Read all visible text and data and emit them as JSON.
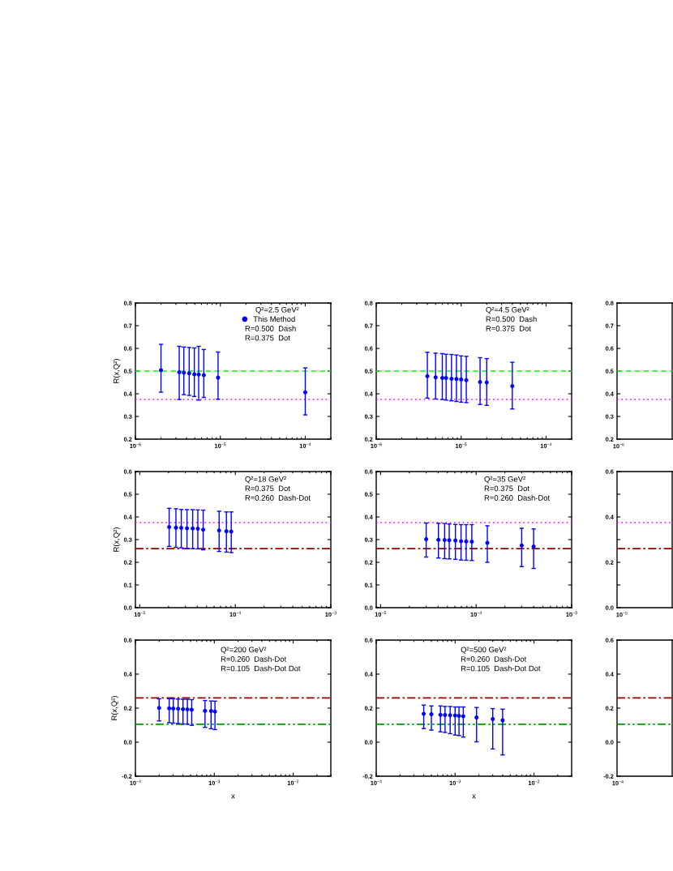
{
  "chart_data": [
    {
      "type": "scatter",
      "title": "Q²=2.5 GeV²",
      "ylabel": "R(x,Q²)",
      "log": "x",
      "marker": "circle",
      "legend": "top right",
      "xlim": [
        1e-06,
        0.0002
      ],
      "xticks": [
        {
          "value": 1e-06,
          "label": "10$^{−6}$"
        },
        {
          "value": 1e-05,
          "label": "10$^{−5}$"
        },
        {
          "value": 0.0001,
          "label": "10$^{−4}$"
        }
      ],
      "ylim": [
        0.2,
        0.8
      ],
      "yticks": [
        0.2,
        0.3,
        0.4,
        0.5,
        0.6,
        0.7,
        0.8
      ],
      "series": [
        {
          "name": "This Method",
          "color": "#0000ff",
          "x": [
            2e-06,
            3.28e-06,
            3.72e-06,
            4.3e-06,
            4.94e-06,
            5.56e-06,
            6.39e-06,
            9.4e-06,
            0.0001
          ],
          "values": [
            0.504,
            0.495,
            0.493,
            0.49,
            0.486,
            0.485,
            0.482,
            0.471,
            0.406
          ],
          "errors": [
            [
              0.407,
              0.618
            ],
            [
              0.375,
              0.609
            ],
            [
              0.396,
              0.606
            ],
            [
              0.393,
              0.604
            ],
            [
              0.388,
              0.602
            ],
            [
              0.372,
              0.609
            ],
            [
              0.384,
              0.595
            ],
            [
              0.376,
              0.584
            ],
            [
              0.307,
              0.514
            ]
          ]
        }
      ],
      "ref_lines": [
        {
          "axis": "y",
          "value": 0.5,
          "color": "#00ff00",
          "line_style": "dashed"
        },
        {
          "axis": "y",
          "value": 0.375,
          "color": "#ff00ff",
          "line_style": "dotted"
        }
      ],
      "annotations": [
        "R=0.500  Dash",
        "R=0.375  Dot"
      ]
    },
    {
      "type": "scatter",
      "title": "Q²=4.5 GeV²",
      "log": "x",
      "marker": "circle",
      "xlim": [
        1e-06,
        0.0002
      ],
      "xticks": [
        {
          "value": 1e-06,
          "label": "10$^{−6}$"
        },
        {
          "value": 1e-05,
          "label": "10$^{−5}$"
        },
        {
          "value": 0.0001,
          "label": "10$^{−4}$"
        }
      ],
      "ylim": [
        0.2,
        0.8
      ],
      "yticks": [
        0.2,
        0.3,
        0.4,
        0.5,
        0.6,
        0.7,
        0.8
      ],
      "series": [
        {
          "color": "#0000ff",
          "x": [
            4e-06,
            5e-06,
            6e-06,
            6.65e-06,
            7.7e-06,
            8.8e-06,
            1e-05,
            1.15e-05,
            1.67e-05,
            2e-05,
            4e-05
          ],
          "values": [
            0.478,
            0.472,
            0.47,
            0.47,
            0.466,
            0.465,
            0.463,
            0.46,
            0.452,
            0.45,
            0.434
          ],
          "errors": [
            [
              0.381,
              0.583
            ],
            [
              0.377,
              0.579
            ],
            [
              0.375,
              0.577
            ],
            [
              0.372,
              0.574
            ],
            [
              0.369,
              0.573
            ],
            [
              0.366,
              0.571
            ],
            [
              0.363,
              0.567
            ],
            [
              0.361,
              0.565
            ],
            [
              0.353,
              0.559
            ],
            [
              0.349,
              0.555
            ],
            [
              0.333,
              0.539
            ]
          ]
        }
      ],
      "ref_lines": [
        {
          "axis": "y",
          "value": 0.5,
          "color": "#00ff00",
          "line_style": "dashed"
        },
        {
          "axis": "y",
          "value": 0.375,
          "color": "#ff00ff",
          "line_style": "dotted"
        }
      ],
      "annotations": [
        "R=0.500  Dash",
        "R=0.375  Dot"
      ]
    },
    {
      "type": "scatter",
      "categories": [
        null
      ],
      "ylim": [
        0.2,
        0.8
      ],
      "yticks": [
        0.2,
        0.3,
        0.4,
        0.5,
        0.6,
        0.7,
        0.8
      ],
      "ref_lines": [
        {
          "axis": "y",
          "value": 0.5,
          "color": "#00ff00",
          "line_style": "dashed"
        },
        {
          "axis": "y",
          "value": 0.375,
          "color": "#ff00ff",
          "line_style": "dotted"
        }
      ],
      "annotations": [
        "10$^{−6}$"
      ]
    },
    {
      "type": "scatter",
      "title": "Q²=18 GeV²",
      "ylabel": "R(x,Q²)",
      "log": "x",
      "marker": "circle",
      "xlim": [
        9e-06,
        0.001
      ],
      "xticks": [
        {
          "value": 1e-05,
          "label": "10$^{−5}$"
        },
        {
          "value": 0.0001,
          "label": "10$^{−4}$"
        },
        {
          "value": 0.001,
          "label": "10$^{−3}$"
        }
      ],
      "ylim": [
        0,
        0.6
      ],
      "yticks": [
        {
          "value": 0,
          "label": "0.0"
        },
        0.1,
        0.2,
        0.3,
        0.4,
        0.5,
        0.6
      ],
      "series": [
        {
          "color": "#0000ff",
          "x": [
            2.03e-05,
            2.39e-05,
            2.72e-05,
            3.12e-05,
            3.58e-05,
            4.05e-05,
            4.61e-05,
            6.77e-05,
            8.07e-05,
            9.07e-05
          ],
          "values": [
            0.355,
            0.353,
            0.352,
            0.35,
            0.349,
            0.348,
            0.344,
            0.34,
            0.337,
            0.336
          ],
          "errors": [
            [
              0.27,
              0.438
            ],
            [
              0.266,
              0.436
            ],
            [
              0.264,
              0.433
            ],
            [
              0.261,
              0.432
            ],
            [
              0.26,
              0.432
            ],
            [
              0.259,
              0.431
            ],
            [
              0.255,
              0.43
            ],
            [
              0.248,
              0.425
            ],
            [
              0.245,
              0.422
            ],
            [
              0.243,
              0.422
            ]
          ]
        }
      ],
      "ref_lines": [
        {
          "axis": "y",
          "value": 0.375,
          "color": "#ff00ff",
          "line_style": "dotted"
        },
        {
          "axis": "y",
          "value": 0.26,
          "color": "#990000",
          "line_style": "dashdot"
        }
      ],
      "annotations": [
        "R=0.375  Dot",
        "R=0.260  Dash-Dot"
      ]
    },
    {
      "type": "scatter",
      "title": "Q²=35 GeV²",
      "log": "x",
      "marker": "circle",
      "xlim": [
        9e-06,
        0.001
      ],
      "xticks": [
        {
          "value": 1e-05,
          "label": "10$^{−5}$"
        },
        {
          "value": 0.0001,
          "label": "10$^{−4}$"
        },
        {
          "value": 0.001,
          "label": "10$^{−3}$"
        }
      ],
      "ylim": [
        0,
        0.6
      ],
      "yticks": [
        {
          "value": 0,
          "label": "0.0"
        },
        0.1,
        0.2,
        0.3,
        0.4,
        0.5,
        0.6
      ],
      "series": [
        {
          "color": "#0000ff",
          "x": [
            3e-05,
            4.03e-05,
            4.68e-05,
            5.23e-05,
            6.07e-05,
            6.95e-05,
            7.87e-05,
            9.01e-05,
            0.000131,
            0.0003,
            0.0004
          ],
          "values": [
            0.302,
            0.299,
            0.298,
            0.297,
            0.296,
            0.293,
            0.292,
            0.291,
            0.286,
            0.274,
            0.27
          ],
          "errors": [
            [
              0.223,
              0.373
            ],
            [
              0.219,
              0.372
            ],
            [
              0.216,
              0.371
            ],
            [
              0.215,
              0.369
            ],
            [
              0.213,
              0.367
            ],
            [
              0.21,
              0.366
            ],
            [
              0.209,
              0.366
            ],
            [
              0.208,
              0.366
            ],
            [
              0.2,
              0.361
            ],
            [
              0.181,
              0.35
            ],
            [
              0.173,
              0.347
            ]
          ]
        }
      ],
      "ref_lines": [
        {
          "axis": "y",
          "value": 0.375,
          "color": "#ff00ff",
          "line_style": "dotted"
        },
        {
          "axis": "y",
          "value": 0.26,
          "color": "#990000",
          "line_style": "dashdot"
        }
      ],
      "annotations": [
        "R=0.375  Dot",
        "R=0.260  Dash-Dot"
      ]
    },
    {
      "type": "scatter",
      "categories": [
        null
      ],
      "ylim": [
        0,
        0.6
      ],
      "yticks": [
        {
          "value": 0,
          "label": "0.0"
        },
        {
          "value": 0.1,
          "label": null
        },
        0.2,
        {
          "value": 0.3,
          "label": null
        },
        0.4,
        {
          "value": 0.5,
          "label": null
        },
        0.6
      ],
      "ref_lines": [
        {
          "axis": "y",
          "value": 0.375,
          "color": "#ff00ff",
          "line_style": "dotted"
        },
        {
          "axis": "y",
          "value": 0.26,
          "color": "#990000",
          "line_style": "dashdot"
        }
      ],
      "annotations": [
        "10$^{−5}$"
      ]
    },
    {
      "type": "scatter",
      "title": "Q²=200 GeV²",
      "xlabel": "x",
      "ylabel": "R(x,Q²)",
      "log": "x",
      "marker": "circle",
      "xlim": [
        0.0001,
        0.03
      ],
      "xticks": [
        {
          "value": 0.0001,
          "label": "10$^{−4}$"
        },
        {
          "value": 0.001,
          "label": "10$^{−3}$"
        },
        {
          "value": 0.01,
          "label": "10$^{−2}$"
        }
      ],
      "ylim": [
        -0.2,
        0.6
      ],
      "yticks": [
        -0.2,
        {
          "value": 0,
          "label": "0.0"
        },
        0.2,
        0.4,
        0.6
      ],
      "series": [
        {
          "color": "#0000ff",
          "x": [
            0.0002,
            0.000268,
            0.000302,
            0.000348,
            0.000401,
            0.000456,
            0.000517,
            0.000763,
            0.00091,
            0.00102
          ],
          "values": [
            0.201,
            0.199,
            0.198,
            0.196,
            0.194,
            0.193,
            0.191,
            0.185,
            0.183,
            0.18
          ],
          "errors": [
            [
              0.125,
              0.255
            ],
            [
              0.115,
              0.256
            ],
            [
              0.112,
              0.255
            ],
            [
              0.11,
              0.253
            ],
            [
              0.107,
              0.252
            ],
            [
              0.106,
              0.252
            ],
            [
              0.099,
              0.25
            ],
            [
              0.087,
              0.245
            ],
            [
              0.079,
              0.242
            ],
            [
              0.074,
              0.241
            ]
          ]
        }
      ],
      "ref_lines": [
        {
          "axis": "y",
          "value": 0.26,
          "color": "#990000",
          "line_style": "dashdot"
        },
        {
          "axis": "y",
          "value": 0.105,
          "color": "#009900",
          "line_style": "dashdotdot"
        }
      ],
      "annotations": [
        "R=0.260  Dash-Dot",
        "R=0.105  Dash-Dot Dot"
      ]
    },
    {
      "type": "scatter",
      "title": "Q²=500 GeV²",
      "xlabel": "x",
      "log": "x",
      "marker": "circle",
      "xlim": [
        0.0001,
        0.03
      ],
      "xticks": [
        {
          "value": 0.0001,
          "label": "10$^{−4}$"
        },
        {
          "value": 0.001,
          "label": "10$^{−3}$"
        },
        {
          "value": 0.01,
          "label": "10$^{−2}$"
        }
      ],
      "ylim": [
        -0.2,
        0.6
      ],
      "yticks": [
        -0.2,
        {
          "value": 0,
          "label": "0.0"
        },
        0.2,
        0.4,
        0.6
      ],
      "series": [
        {
          "color": "#0000ff",
          "x": [
            0.0004,
            0.0005,
            0.000652,
            0.000745,
            0.000865,
            0.001,
            0.00112,
            0.00127,
            0.00187,
            0.003,
            0.004
          ],
          "values": [
            0.167,
            0.164,
            0.161,
            0.16,
            0.158,
            0.157,
            0.155,
            0.152,
            0.145,
            0.136,
            0.128
          ],
          "errors": [
            [
              0.08,
              0.218
            ],
            [
              0.071,
              0.213
            ],
            [
              0.061,
              0.213
            ],
            [
              0.057,
              0.21
            ],
            [
              0.05,
              0.21
            ],
            [
              0.042,
              0.207
            ],
            [
              0.039,
              0.207
            ],
            [
              0.03,
              0.207
            ],
            [
              0.002,
              0.204
            ],
            [
              -0.04,
              0.197
            ],
            [
              -0.075,
              0.194
            ]
          ]
        }
      ],
      "ref_lines": [
        {
          "axis": "y",
          "value": 0.26,
          "color": "#990000",
          "line_style": "dashdot"
        },
        {
          "axis": "y",
          "value": 0.105,
          "color": "#009900",
          "line_style": "dashdotdot"
        }
      ],
      "annotations": [
        "R=0.260  Dash-Dot",
        "R=0.105  Dash-Dot Dot"
      ]
    },
    {
      "type": "scatter",
      "categories": [
        null
      ],
      "ylim": [
        -0.2,
        0.6
      ],
      "yticks": [
        -0.2,
        {
          "value": 0,
          "label": "0.0"
        },
        0.2,
        0.4,
        0.6
      ],
      "ref_lines": [
        {
          "axis": "y",
          "value": 0.26,
          "color": "#990000",
          "line_style": "dashdot"
        },
        {
          "axis": "y",
          "value": 0.105,
          "color": "#009900",
          "line_style": "dashdotdot"
        }
      ],
      "annotations": [
        "10$^{−4}$"
      ]
    }
  ]
}
